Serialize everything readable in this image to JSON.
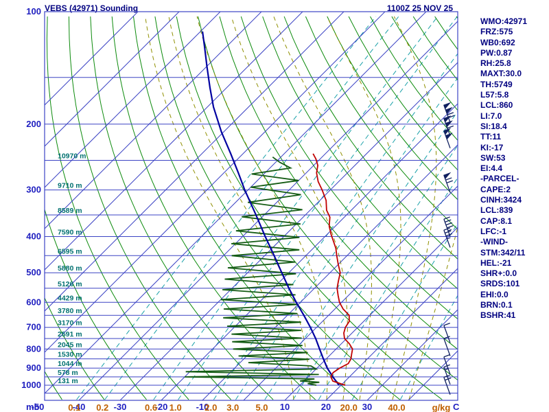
{
  "header": {
    "title": "VEBS (42971) Sounding",
    "datetime": "1100Z 25 NOV 25"
  },
  "stats": [
    "WMO:42971",
    "FRZ:575",
    "WB0:692",
    "PW:0.87",
    "RH:25.8",
    "MAXT:30.0",
    "TH:5749",
    "L57:5.8",
    "LCL:860",
    "LI:7.0",
    "SI:18.4",
    "TT:11",
    "KI:-17",
    "SW:53",
    "EI:4.4",
    "-PARCEL-",
    "CAPE:2",
    "CINH:3424",
    "LCL:839",
    "CAP:8.1",
    "LFC:-1",
    "-WIND-",
    "STM:342/11",
    "HEL:-21",
    "SHR+:0.0",
    "SRDS:101",
    "EHI:0.0",
    "BRN:0.1",
    "BSHR:41"
  ],
  "axes": {
    "pressure_unit": "mb",
    "temp_unit": "C",
    "mixing_unit": "g/kg",
    "pressure_labels": [
      100,
      200,
      300,
      400,
      500,
      600,
      700,
      800,
      900,
      1000
    ],
    "temp_labels": [
      -50,
      -40,
      -30,
      -20,
      -10,
      10,
      20,
      30
    ],
    "mixing_labels": [
      "0.1",
      "0.2",
      "0.6",
      "1.0",
      "2.0",
      "3.0",
      "5.0",
      "20.0",
      "40.0"
    ],
    "mixing_label_values": [
      0.1,
      0.2,
      0.6,
      1.0,
      2.0,
      3.0,
      5.0,
      20.0,
      40.0
    ]
  },
  "height_labels": [
    [
      250,
      "10970 m"
    ],
    [
      300,
      "9710 m"
    ],
    [
      350,
      "8589 m"
    ],
    [
      400,
      "7590 m"
    ],
    [
      450,
      "6595 m"
    ],
    [
      500,
      "5880 m"
    ],
    [
      550,
      "5126 m"
    ],
    [
      600,
      "4429 m"
    ],
    [
      650,
      "3780 m"
    ],
    [
      700,
      "3170 m"
    ],
    [
      750,
      "2591 m"
    ],
    [
      800,
      "2045 m"
    ],
    [
      850,
      "1530 m"
    ],
    [
      900,
      "1044 m"
    ],
    [
      950,
      "578 m"
    ],
    [
      1000,
      "131 m"
    ]
  ],
  "chart_data": {
    "type": "line",
    "subtype": "skew-t-log-p-sounding",
    "title": "VEBS (42971) Sounding",
    "xlabel": "Temperature (C) / Mixing ratio (g/kg)",
    "ylabel": "Pressure (mb)",
    "pressure_range_mb": [
      100,
      1093
    ],
    "surface_temp_axis_range_c": [
      -50,
      45
    ],
    "grid": true,
    "isobars_mb": [
      100,
      150,
      200,
      250,
      300,
      350,
      400,
      450,
      500,
      550,
      600,
      650,
      700,
      750,
      800,
      850,
      900,
      950,
      1000,
      1050
    ],
    "isotherms_c": [
      -120,
      -110,
      -100,
      -90,
      -80,
      -70,
      -60,
      -50,
      -40,
      -30,
      -20,
      -10,
      0,
      10,
      20,
      30,
      40
    ],
    "dry_adiabats_theta_c": [
      -50,
      -40,
      -30,
      -20,
      -10,
      0,
      10,
      20,
      30,
      40,
      50,
      60,
      70,
      80,
      90,
      100,
      110,
      120,
      130,
      140,
      150,
      160,
      170
    ],
    "mixing_ratio_lines": [
      0.1,
      0.2,
      0.6,
      1,
      2,
      3,
      5,
      8,
      12,
      20,
      40
    ],
    "moist_adiabats_start_c": [
      12,
      16,
      20,
      24,
      28,
      32,
      36,
      40
    ],
    "temperature_profile": [
      [
        1000,
        21
      ],
      [
        975,
        17
      ],
      [
        950,
        15.5
      ],
      [
        925,
        15
      ],
      [
        900,
        15.5
      ],
      [
        875,
        16.5
      ],
      [
        850,
        16
      ],
      [
        825,
        15
      ],
      [
        800,
        14
      ],
      [
        775,
        12
      ],
      [
        750,
        9.5
      ],
      [
        725,
        8
      ],
      [
        700,
        7
      ],
      [
        675,
        6.5
      ],
      [
        650,
        5
      ],
      [
        625,
        2
      ],
      [
        600,
        -0.5
      ],
      [
        575,
        -2.5
      ],
      [
        550,
        -4.5
      ],
      [
        525,
        -6
      ],
      [
        500,
        -7.5
      ],
      [
        475,
        -10
      ],
      [
        450,
        -12.5
      ],
      [
        430,
        -14.5
      ],
      [
        410,
        -17
      ],
      [
        395,
        -19
      ],
      [
        375,
        -21.5
      ],
      [
        355,
        -23.5
      ],
      [
        340,
        -26
      ],
      [
        320,
        -28.5
      ],
      [
        300,
        -32
      ],
      [
        285,
        -35
      ],
      [
        270,
        -37.5
      ],
      [
        258,
        -39
      ],
      [
        248,
        -41
      ],
      [
        240,
        -43
      ]
    ],
    "dewpoint_profile": [
      [
        1000,
        14
      ],
      [
        990,
        11.5
      ],
      [
        982,
        14
      ],
      [
        974,
        9
      ],
      [
        962,
        12
      ],
      [
        950,
        -20
      ],
      [
        936,
        12
      ],
      [
        920,
        -21
      ],
      [
        905,
        10
      ],
      [
        888,
        8
      ],
      [
        870,
        -8
      ],
      [
        852,
        6
      ],
      [
        835,
        -12
      ],
      [
        818,
        4
      ],
      [
        800,
        -15
      ],
      [
        783,
        1
      ],
      [
        765,
        -17
      ],
      [
        748,
        -1
      ],
      [
        730,
        -19
      ],
      [
        713,
        -3
      ],
      [
        695,
        -22
      ],
      [
        678,
        -5
      ],
      [
        660,
        -25
      ],
      [
        643,
        -8
      ],
      [
        625,
        -27
      ],
      [
        608,
        -10
      ],
      [
        590,
        -30
      ],
      [
        573,
        -13
      ],
      [
        555,
        -32
      ],
      [
        538,
        -16
      ],
      [
        520,
        -34
      ],
      [
        503,
        -18
      ],
      [
        485,
        -36
      ],
      [
        468,
        -21
      ],
      [
        450,
        -38
      ],
      [
        434,
        -23
      ],
      [
        418,
        -41
      ],
      [
        402,
        -26
      ],
      [
        386,
        -43
      ],
      [
        370,
        -29
      ],
      [
        354,
        -45
      ],
      [
        339,
        -32
      ],
      [
        324,
        -47
      ],
      [
        309,
        -36
      ],
      [
        295,
        -50
      ],
      [
        283,
        -40
      ],
      [
        272,
        -53
      ],
      [
        262,
        -45
      ],
      [
        253,
        -49
      ],
      [
        245,
        -52
      ]
    ],
    "parcel_profile": [
      [
        1000,
        19.5
      ],
      [
        950,
        16
      ],
      [
        900,
        12.5
      ],
      [
        850,
        9.3
      ],
      [
        800,
        6
      ],
      [
        750,
        2.5
      ],
      [
        700,
        -1.5
      ],
      [
        650,
        -6
      ],
      [
        600,
        -11
      ],
      [
        550,
        -16.2
      ],
      [
        500,
        -21.7
      ],
      [
        450,
        -27.7
      ],
      [
        400,
        -34.5
      ],
      [
        350,
        -42
      ],
      [
        300,
        -50.8
      ],
      [
        270,
        -56.5
      ],
      [
        240,
        -63
      ],
      [
        210,
        -70.5
      ],
      [
        180,
        -78.5
      ],
      [
        160,
        -84
      ],
      [
        140,
        -90
      ],
      [
        125,
        -95
      ],
      [
        113,
        -99.5
      ]
    ],
    "wind_barbs": [
      {
        "p": 198,
        "kt": 120
      },
      {
        "p": 215,
        "kt": 110
      },
      {
        "p": 232,
        "kt": 100
      },
      {
        "p": 305,
        "kt": 70
      },
      {
        "p": 400,
        "kt": 45
      },
      {
        "p": 428,
        "kt": 35
      },
      {
        "p": 770,
        "kt": 10
      },
      {
        "p": 835,
        "kt": 10
      },
      {
        "p": 935,
        "kt": 10
      },
      {
        "p": 995,
        "kt": 15
      },
      {
        "p": 1060,
        "kt": 20
      }
    ],
    "legend": "off"
  },
  "colors": {
    "grid_blue": "#3b43c4",
    "dry_adiabat_green": "#0b8a0b",
    "mixing_ratio_cyan": "#18a0a8",
    "moist_adiabat_olive": "#8f8f00",
    "temperature_red": "#c00000",
    "dewpoint_green": "#145c14",
    "parcel_blue": "#0000a0",
    "text_navy": "#000080",
    "axis_label_blue": "#2020c0",
    "mixing_label_orange": "#c06000",
    "height_label_teal": "#007070",
    "background": "#ffffff"
  }
}
